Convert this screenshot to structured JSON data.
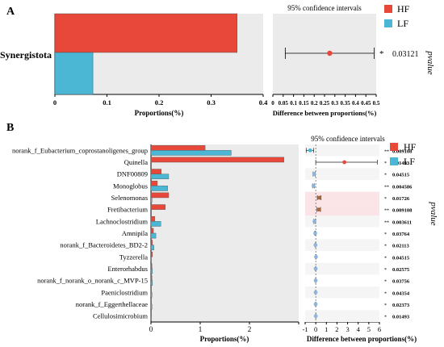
{
  "colors": {
    "hf": "#e8483a",
    "lf": "#4bb7d4",
    "panel_bg": "#ebebeb",
    "stripe": "#f5f5f5",
    "highlight": "#fbe4e6",
    "hf_point": "#e8483a",
    "lf_point": "#4bb7d4",
    "point_b_default": "#8eb4dc",
    "point_b_brown": "#a4683b"
  },
  "chart_data": [
    {
      "type": "bar",
      "panel": "A",
      "categories": [
        "Synergistota"
      ],
      "series": [
        {
          "name": "HF",
          "values": [
            0.35
          ]
        },
        {
          "name": "LF",
          "values": [
            0.073
          ]
        }
      ],
      "xlabel": "Proportions(%)",
      "xlim": [
        0,
        0.4
      ],
      "xticks": [
        "0",
        "0.1",
        "0.2",
        "0.3",
        "0.4"
      ],
      "ci_title": "95% confidence intervals",
      "ci_xlabel": "Difference between proportions(%)",
      "ci_xlim": [
        0,
        0.5
      ],
      "ci_xticks": [
        "0",
        "0.05",
        "0.1",
        "0.15",
        "0.2",
        "0.25",
        "0.3",
        "0.35",
        "0.4",
        "0.45",
        "0.5"
      ],
      "ci": [
        {
          "estimate": 0.275,
          "low": 0.06,
          "high": 0.49
        }
      ],
      "sig": [
        "*"
      ],
      "pvalues": [
        "0.03121"
      ],
      "pvalue_label": "pvalue",
      "legend": [
        "HF",
        "LF"
      ],
      "legend_position": "top-right"
    },
    {
      "type": "bar",
      "panel": "B",
      "categories": [
        "norank_f_Eubacterium_coprostanoligenes_group",
        "Quinella",
        "DNF00809",
        "Monoglobus",
        "Selenomonas",
        "Fretibacterium",
        "Lachnoclostridium",
        "Amnipila",
        "norank_f_Bacteroidetes_BD2-2",
        "Tyzzerella",
        "Enterorhabdus",
        "norank_f_norank_o_norank_c_MVP-15",
        "Paeniclostridium",
        "norank_f_Eggerthellaceae",
        "Cellulosimicrobium"
      ],
      "series": [
        {
          "name": "HF",
          "values": [
            1.1,
            2.7,
            0.21,
            0.13,
            0.36,
            0.29,
            0.08,
            0.05,
            0.03,
            0.03,
            0.02,
            0.02,
            0.01,
            0.01,
            0.01
          ]
        },
        {
          "name": "LF",
          "values": [
            1.63,
            0.0,
            0.36,
            0.34,
            0.02,
            0.0,
            0.2,
            0.1,
            0.06,
            0.01,
            0.03,
            0.03,
            0.02,
            0.02,
            0.01
          ]
        }
      ],
      "xlabel": "Proportions(%)",
      "xlim": [
        0,
        3
      ],
      "xticks": [
        "0",
        "1",
        "2"
      ],
      "ci_title": "95% confidence intervals",
      "ci_xlabel": "Difference between proportions(%)",
      "ci_xlim": [
        -1,
        6
      ],
      "ci_xticks": [
        "-1",
        "0",
        "1",
        "2",
        "3",
        "4",
        "5",
        "6"
      ],
      "ci": [
        {
          "estimate": -0.53,
          "low": -0.9,
          "high": -0.2
        },
        {
          "estimate": 2.7,
          "low": 0.0,
          "high": 5.8
        },
        {
          "estimate": -0.15,
          "low": -0.25,
          "high": -0.05
        },
        {
          "estimate": -0.21,
          "low": -0.3,
          "high": -0.12
        },
        {
          "estimate": 0.34,
          "low": 0.15,
          "high": 0.5
        },
        {
          "estimate": 0.29,
          "low": 0.12,
          "high": 0.45
        },
        {
          "estimate": -0.12,
          "low": -0.18,
          "high": -0.06
        },
        {
          "estimate": -0.05,
          "low": -0.08,
          "high": -0.02
        },
        {
          "estimate": -0.03,
          "low": -0.05,
          "high": -0.01
        },
        {
          "estimate": 0.02,
          "low": 0.0,
          "high": 0.04
        },
        {
          "estimate": -0.01,
          "low": -0.02,
          "high": 0.0
        },
        {
          "estimate": -0.01,
          "low": -0.02,
          "high": 0.0
        },
        {
          "estimate": -0.01,
          "low": -0.02,
          "high": 0.0
        },
        {
          "estimate": -0.01,
          "low": -0.02,
          "high": 0.0
        },
        {
          "estimate": 0.0,
          "low": -0.01,
          "high": 0.01
        }
      ],
      "point_colors": [
        "lf",
        "hf",
        "b",
        "b",
        "brown",
        "brown",
        "b",
        "b",
        "b",
        "b",
        "b",
        "b",
        "b",
        "b",
        "b"
      ],
      "highlight_rows": [
        4,
        5
      ],
      "sig": [
        "**",
        "*",
        "*",
        "**",
        "*",
        "**",
        "**",
        "*",
        "*",
        "*",
        "*",
        "*",
        "*",
        "*",
        "*"
      ],
      "pvalues": [
        "0.009108",
        "0.01493",
        "0.04515",
        "0.004586",
        "0.01726",
        "0.009108",
        "0.003611",
        "0.03764",
        "0.02113",
        "0.04515",
        "0.02575",
        "0.03756",
        "0.04354",
        "0.02373",
        "0.01493"
      ],
      "pvalue_label": "pvalue",
      "legend": [
        "HF",
        "LF"
      ],
      "legend_position": "top-right"
    }
  ]
}
